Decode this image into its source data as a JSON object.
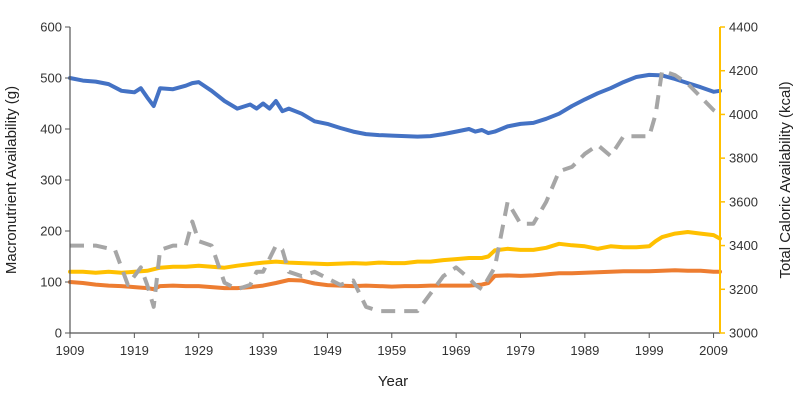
{
  "chart_data": {
    "type": "line",
    "title": "",
    "xlabel": "Year",
    "ylabel_left": "Macronutrient  Availability (g)",
    "ylabel_right": "Total Caloric Availability (kcal)",
    "xlim": [
      1909,
      2010
    ],
    "ylim_left": [
      0,
      600
    ],
    "ylim_right": [
      3000,
      4400
    ],
    "x_ticks": [
      1909,
      1919,
      1929,
      1939,
      1949,
      1959,
      1969,
      1979,
      1989,
      1999,
      2009
    ],
    "y_ticks_left": [
      0,
      100,
      200,
      300,
      400,
      500,
      600
    ],
    "y_ticks_right": [
      3000,
      3200,
      3400,
      3600,
      3800,
      4000,
      4200,
      4400
    ],
    "grid": false,
    "legend": "none",
    "series": [
      {
        "axis": "left",
        "color": "#4472C4",
        "style": "solid",
        "x": [
          1909,
          1911,
          1913,
          1915,
          1917,
          1919,
          1920,
          1921,
          1922,
          1923,
          1925,
          1927,
          1928,
          1929,
          1931,
          1933,
          1935,
          1937,
          1938,
          1939,
          1940,
          1941,
          1942,
          1943,
          1945,
          1947,
          1949,
          1951,
          1953,
          1955,
          1957,
          1959,
          1961,
          1963,
          1965,
          1967,
          1969,
          1971,
          1972,
          1973,
          1974,
          1975,
          1977,
          1979,
          1981,
          1983,
          1985,
          1987,
          1989,
          1991,
          1993,
          1995,
          1997,
          1999,
          2001,
          2003,
          2005,
          2007,
          2009,
          2010
        ],
        "y": [
          500,
          495,
          493,
          488,
          475,
          472,
          480,
          462,
          445,
          480,
          478,
          485,
          490,
          492,
          475,
          455,
          440,
          448,
          440,
          450,
          440,
          455,
          435,
          440,
          430,
          415,
          410,
          402,
          395,
          390,
          388,
          387,
          386,
          385,
          386,
          390,
          395,
          400,
          395,
          398,
          392,
          395,
          405,
          410,
          412,
          420,
          430,
          445,
          458,
          470,
          480,
          492,
          502,
          506,
          505,
          498,
          490,
          482,
          473,
          475
        ]
      },
      {
        "axis": "left",
        "color": "#FFC000",
        "style": "solid",
        "x": [
          1909,
          1911,
          1913,
          1915,
          1917,
          1919,
          1921,
          1923,
          1925,
          1927,
          1929,
          1931,
          1933,
          1935,
          1937,
          1939,
          1941,
          1943,
          1945,
          1947,
          1949,
          1951,
          1953,
          1955,
          1957,
          1959,
          1961,
          1963,
          1965,
          1967,
          1969,
          1971,
          1973,
          1974,
          1975,
          1977,
          1979,
          1981,
          1983,
          1985,
          1987,
          1989,
          1991,
          1993,
          1995,
          1997,
          1999,
          2000,
          2001,
          2003,
          2005,
          2007,
          2009,
          2010
        ],
        "y": [
          120,
          120,
          118,
          120,
          118,
          120,
          122,
          128,
          130,
          130,
          132,
          130,
          128,
          132,
          135,
          138,
          140,
          138,
          137,
          136,
          135,
          136,
          137,
          136,
          138,
          137,
          137,
          140,
          140,
          143,
          145,
          147,
          147,
          150,
          162,
          165,
          163,
          163,
          167,
          175,
          172,
          170,
          165,
          170,
          168,
          168,
          170,
          180,
          188,
          195,
          198,
          195,
          192,
          185
        ]
      },
      {
        "axis": "left",
        "color": "#ED7D31",
        "style": "solid",
        "x": [
          1909,
          1911,
          1913,
          1915,
          1917,
          1919,
          1921,
          1922,
          1923,
          1925,
          1927,
          1929,
          1931,
          1933,
          1935,
          1937,
          1939,
          1941,
          1943,
          1945,
          1947,
          1949,
          1951,
          1953,
          1955,
          1957,
          1959,
          1961,
          1963,
          1965,
          1967,
          1969,
          1971,
          1973,
          1974,
          1975,
          1977,
          1979,
          1981,
          1983,
          1985,
          1987,
          1989,
          1991,
          1993,
          1995,
          1997,
          1999,
          2001,
          2003,
          2005,
          2007,
          2009,
          2010
        ],
        "y": [
          100,
          98,
          95,
          93,
          92,
          90,
          88,
          86,
          92,
          93,
          92,
          92,
          90,
          88,
          88,
          90,
          93,
          98,
          104,
          103,
          97,
          94,
          93,
          92,
          93,
          92,
          91,
          92,
          92,
          93,
          93,
          93,
          93,
          95,
          98,
          112,
          113,
          112,
          113,
          115,
          117,
          117,
          118,
          119,
          120,
          121,
          121,
          121,
          122,
          123,
          122,
          122,
          120,
          120
        ]
      },
      {
        "axis": "right",
        "color": "#A6A6A6",
        "style": "dashed",
        "x": [
          1909,
          1913,
          1916,
          1918,
          1920,
          1921,
          1922,
          1923,
          1925,
          1927,
          1928,
          1929,
          1931,
          1933,
          1935,
          1937,
          1938,
          1939,
          1941,
          1942,
          1943,
          1945,
          1947,
          1949,
          1951,
          1953,
          1955,
          1957,
          1959,
          1961,
          1963,
          1965,
          1967,
          1969,
          1971,
          1972,
          1973,
          1975,
          1977,
          1979,
          1981,
          1983,
          1985,
          1987,
          1989,
          1991,
          1993,
          1995,
          1997,
          1999,
          2000,
          2001,
          2003,
          2005,
          2007,
          2009,
          2010
        ],
        "y": [
          3400,
          3400,
          3380,
          3220,
          3300,
          3220,
          3120,
          3380,
          3400,
          3400,
          3510,
          3420,
          3400,
          3230,
          3200,
          3220,
          3280,
          3280,
          3400,
          3380,
          3280,
          3260,
          3280,
          3250,
          3220,
          3240,
          3120,
          3100,
          3100,
          3100,
          3100,
          3180,
          3260,
          3300,
          3250,
          3220,
          3200,
          3300,
          3600,
          3500,
          3500,
          3600,
          3740,
          3760,
          3820,
          3860,
          3810,
          3900,
          3900,
          3900,
          4000,
          4200,
          4180,
          4140,
          4080,
          4020,
          4000
        ]
      }
    ]
  }
}
